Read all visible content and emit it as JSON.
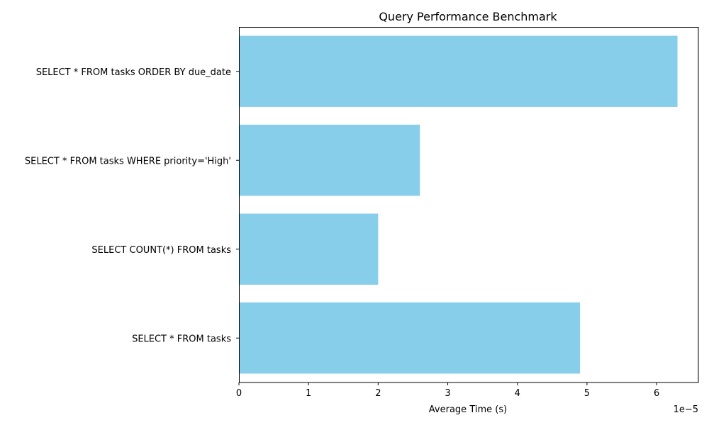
{
  "chart_data": {
    "type": "bar",
    "orientation": "horizontal",
    "title": "Query Performance Benchmark",
    "xlabel": "Average Time (s)",
    "ylabel": "",
    "x_offset_label": "1e−5",
    "categories": [
      "SELECT * FROM tasks",
      "SELECT COUNT(*) FROM tasks",
      "SELECT * FROM tasks WHERE priority='High'",
      "SELECT * FROM tasks ORDER BY due_date"
    ],
    "values": [
      4.9e-05,
      2e-05,
      2.6e-05,
      6.3e-05
    ],
    "xlim": [
      0,
      6.6e-05
    ],
    "x_ticks": [
      0,
      1e-05,
      2e-05,
      3e-05,
      4e-05,
      5e-05,
      6e-05
    ],
    "x_tick_labels": [
      "0",
      "1",
      "2",
      "3",
      "4",
      "5",
      "6"
    ],
    "bar_color": "#87CEEB",
    "grid": false,
    "legend": "none"
  }
}
